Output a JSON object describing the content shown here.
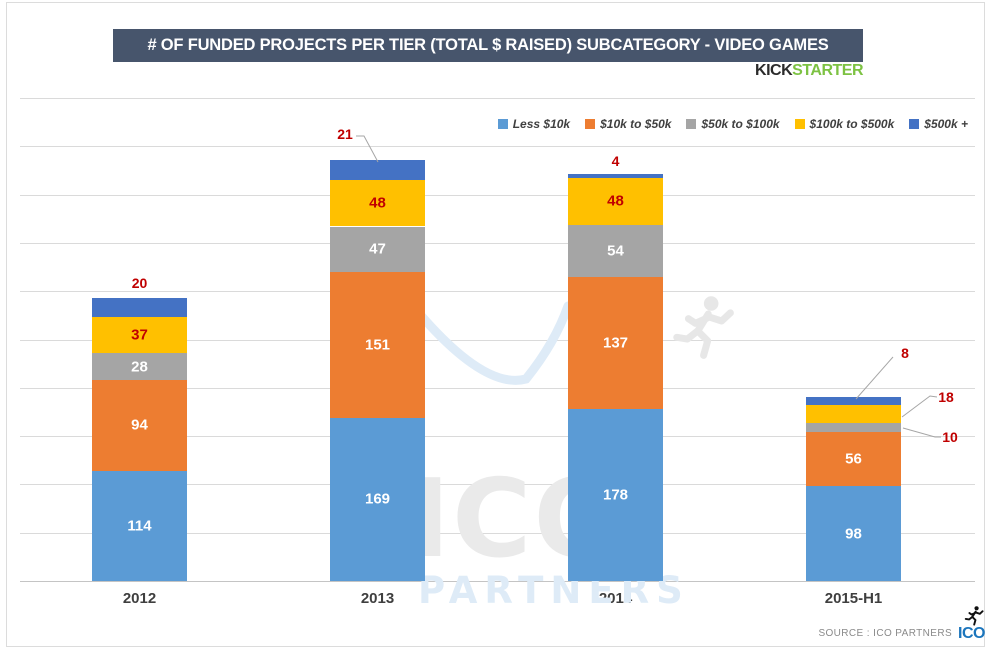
{
  "header": {
    "title": "# OF FUNDED PROJECTS PER TIER (TOTAL $ RAISED) SUBCATEGORY - VIDEO GAMES",
    "brand_kick": "KICK",
    "brand_starter": "STARTER"
  },
  "chart_data": {
    "type": "bar",
    "stacked": true,
    "title": "# OF FUNDED PROJECTS PER TIER (TOTAL $ RAISED) SUBCATEGORY - VIDEO GAMES",
    "categories": [
      "2012",
      "2013",
      "2014",
      "2015-H1"
    ],
    "series": [
      {
        "name": "Less $10k",
        "color": "#5B9BD5",
        "label_color": "#FFFFFF",
        "values": [
          114,
          169,
          178,
          98
        ]
      },
      {
        "name": "$10k to $50k",
        "color": "#ED7D31",
        "label_color": "#FFFFFF",
        "values": [
          94,
          151,
          137,
          56
        ]
      },
      {
        "name": "$50k to $100k",
        "color": "#A5A5A5",
        "label_color": "#FFFFFF",
        "values": [
          28,
          47,
          54,
          10
        ]
      },
      {
        "name": "$100k to $500k",
        "color": "#FFC000",
        "label_color": "#C00000",
        "values": [
          37,
          48,
          48,
          18
        ]
      },
      {
        "name": "$500k +",
        "color": "#4472C4",
        "label_color": "#C00000",
        "values": [
          20,
          21,
          4,
          8
        ]
      }
    ],
    "xlabel": "",
    "ylabel": "",
    "ylim": [
      0,
      500
    ],
    "gridline_step": 50,
    "grid": true,
    "y_tick_labels_visible": false,
    "legend_position": "top-right",
    "callout_color": "#C00000"
  },
  "watermark": {
    "line1": "ICO",
    "line2": "PARTNERS"
  },
  "footer": {
    "source_label": "SOURCE : ICO PARTNERS",
    "logo_text": "ICO"
  },
  "theme": {
    "banner_bg": "#47556C",
    "brand_green": "#7DC243",
    "logo_blue": "#1B75BC",
    "callout_red": "#C00000",
    "series_blue": "#5B9BD5",
    "series_orange": "#ED7D31",
    "series_gray": "#A5A5A5",
    "series_yellow": "#FFC000",
    "series_darkblue": "#4472C4"
  }
}
